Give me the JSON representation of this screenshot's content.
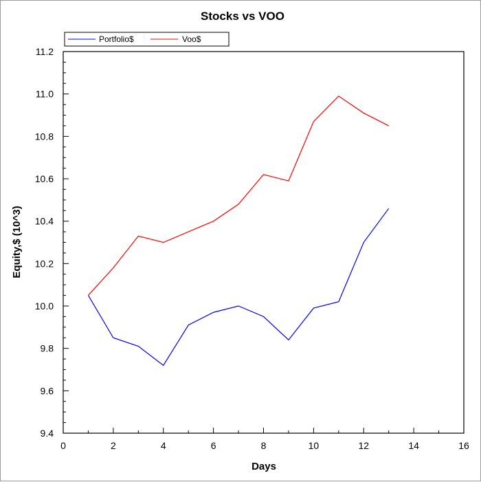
{
  "chart_data": {
    "type": "line",
    "title": "Stocks vs VOO",
    "xlabel": "Days",
    "ylabel": "Equity,$ (10^3)",
    "xlim": [
      0,
      16
    ],
    "ylim": [
      9.4,
      11.2
    ],
    "x_ticks": [
      0,
      2,
      4,
      6,
      8,
      10,
      12,
      14,
      16
    ],
    "x_tick_labels": [
      "0",
      "2",
      "4",
      "6",
      "8",
      "10",
      "12",
      "14",
      "16"
    ],
    "y_ticks": [
      9.4,
      9.6,
      9.8,
      10.0,
      10.2,
      10.4,
      10.6,
      10.8,
      11.0,
      11.2
    ],
    "y_tick_labels": [
      "9.4",
      "9.6",
      "9.8",
      "10.0",
      "10.2",
      "10.4",
      "10.6",
      "10.8",
      "11.0",
      "11.2"
    ],
    "legend_position": "top-left",
    "grid": false,
    "series": [
      {
        "name": "Portfolio$",
        "color": "#0000ff",
        "x": [
          1,
          2,
          3,
          4,
          5,
          6,
          7,
          8,
          9,
          10,
          11,
          12,
          13
        ],
        "values": [
          10.05,
          9.85,
          9.81,
          9.72,
          9.91,
          9.97,
          10.0,
          9.95,
          9.84,
          9.99,
          10.02,
          10.3,
          10.46
        ]
      },
      {
        "name": "Voo$",
        "color": "#ff0000",
        "x": [
          1,
          2,
          3,
          4,
          5,
          6,
          7,
          8,
          9,
          10,
          11,
          12,
          13
        ],
        "values": [
          10.05,
          10.18,
          10.33,
          10.3,
          10.35,
          10.4,
          10.48,
          10.62,
          10.59,
          10.87,
          10.99,
          10.91,
          10.85
        ]
      }
    ]
  }
}
